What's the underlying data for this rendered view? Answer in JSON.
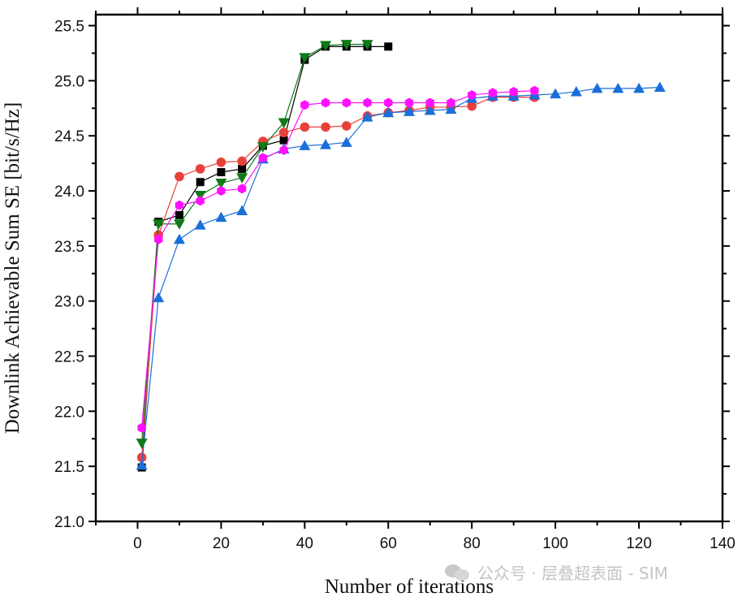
{
  "chart_data": {
    "type": "line",
    "xlabel": "Number of iterations",
    "ylabel": "Downlink Achievable Sum SE [bit/s/Hz]",
    "xlim": [
      -10,
      140
    ],
    "ylim": [
      21.0,
      25.6
    ],
    "x_ticks": [
      "0",
      "20",
      "40",
      "60",
      "80",
      "100",
      "120",
      "140"
    ],
    "y_ticks": [
      "21.0",
      "21.5",
      "22.0",
      "22.5",
      "23.0",
      "23.5",
      "24.0",
      "24.5",
      "25.0",
      "25.5"
    ],
    "grid": false,
    "series": [
      {
        "color": "#000000",
        "marker": "square",
        "x": [
          1,
          5,
          10,
          15,
          20,
          25,
          30,
          35,
          40,
          45,
          50,
          55,
          60
        ],
        "y": [
          21.49,
          23.72,
          23.78,
          24.08,
          24.17,
          24.2,
          24.41,
          24.46,
          25.19,
          25.31,
          25.31,
          25.31,
          25.31
        ]
      },
      {
        "color": "#e8413a",
        "marker": "circle",
        "x": [
          1,
          5,
          10,
          15,
          20,
          25,
          30,
          35,
          40,
          45,
          50,
          55,
          60,
          65,
          70,
          75,
          80,
          85,
          90,
          95
        ],
        "y": [
          21.58,
          23.6,
          24.13,
          24.2,
          24.26,
          24.27,
          24.45,
          24.53,
          24.58,
          24.58,
          24.59,
          24.68,
          24.71,
          24.73,
          24.76,
          24.76,
          24.77,
          24.85,
          24.85,
          24.85
        ]
      },
      {
        "color": "#1a6fd9",
        "marker": "triangle-up",
        "x": [
          1,
          5,
          10,
          15,
          20,
          25,
          30,
          35,
          40,
          45,
          50,
          55,
          60,
          65,
          70,
          75,
          80,
          85,
          90,
          95,
          100,
          105,
          110,
          115,
          120,
          125
        ],
        "y": [
          21.51,
          23.03,
          23.56,
          23.69,
          23.76,
          23.82,
          24.29,
          24.38,
          24.41,
          24.42,
          24.44,
          24.67,
          24.71,
          24.72,
          24.73,
          24.74,
          24.84,
          24.86,
          24.86,
          24.87,
          24.88,
          24.9,
          24.93,
          24.93,
          24.93,
          24.94
        ]
      },
      {
        "color": "#0f7a17",
        "marker": "triangle-down",
        "x": [
          1,
          5,
          10,
          15,
          20,
          25,
          30,
          35,
          40,
          45,
          50,
          55
        ],
        "y": [
          21.71,
          23.7,
          23.7,
          23.96,
          24.07,
          24.12,
          24.4,
          24.62,
          25.21,
          25.32,
          25.33,
          25.33
        ]
      },
      {
        "color": "#ff10ff",
        "marker": "hexagon",
        "x": [
          1,
          5,
          10,
          15,
          20,
          25,
          30,
          35,
          40,
          45,
          50,
          55,
          60,
          65,
          70,
          75,
          80,
          85,
          90,
          95
        ],
        "y": [
          21.85,
          23.56,
          23.87,
          23.91,
          24.0,
          24.02,
          24.3,
          24.37,
          24.78,
          24.8,
          24.8,
          24.8,
          24.8,
          24.8,
          24.8,
          24.8,
          24.87,
          24.89,
          24.9,
          24.91
        ]
      }
    ]
  },
  "watermark": {
    "text": "公众号 · 层叠超表面 - SIM",
    "icon": "wechat-icon"
  }
}
